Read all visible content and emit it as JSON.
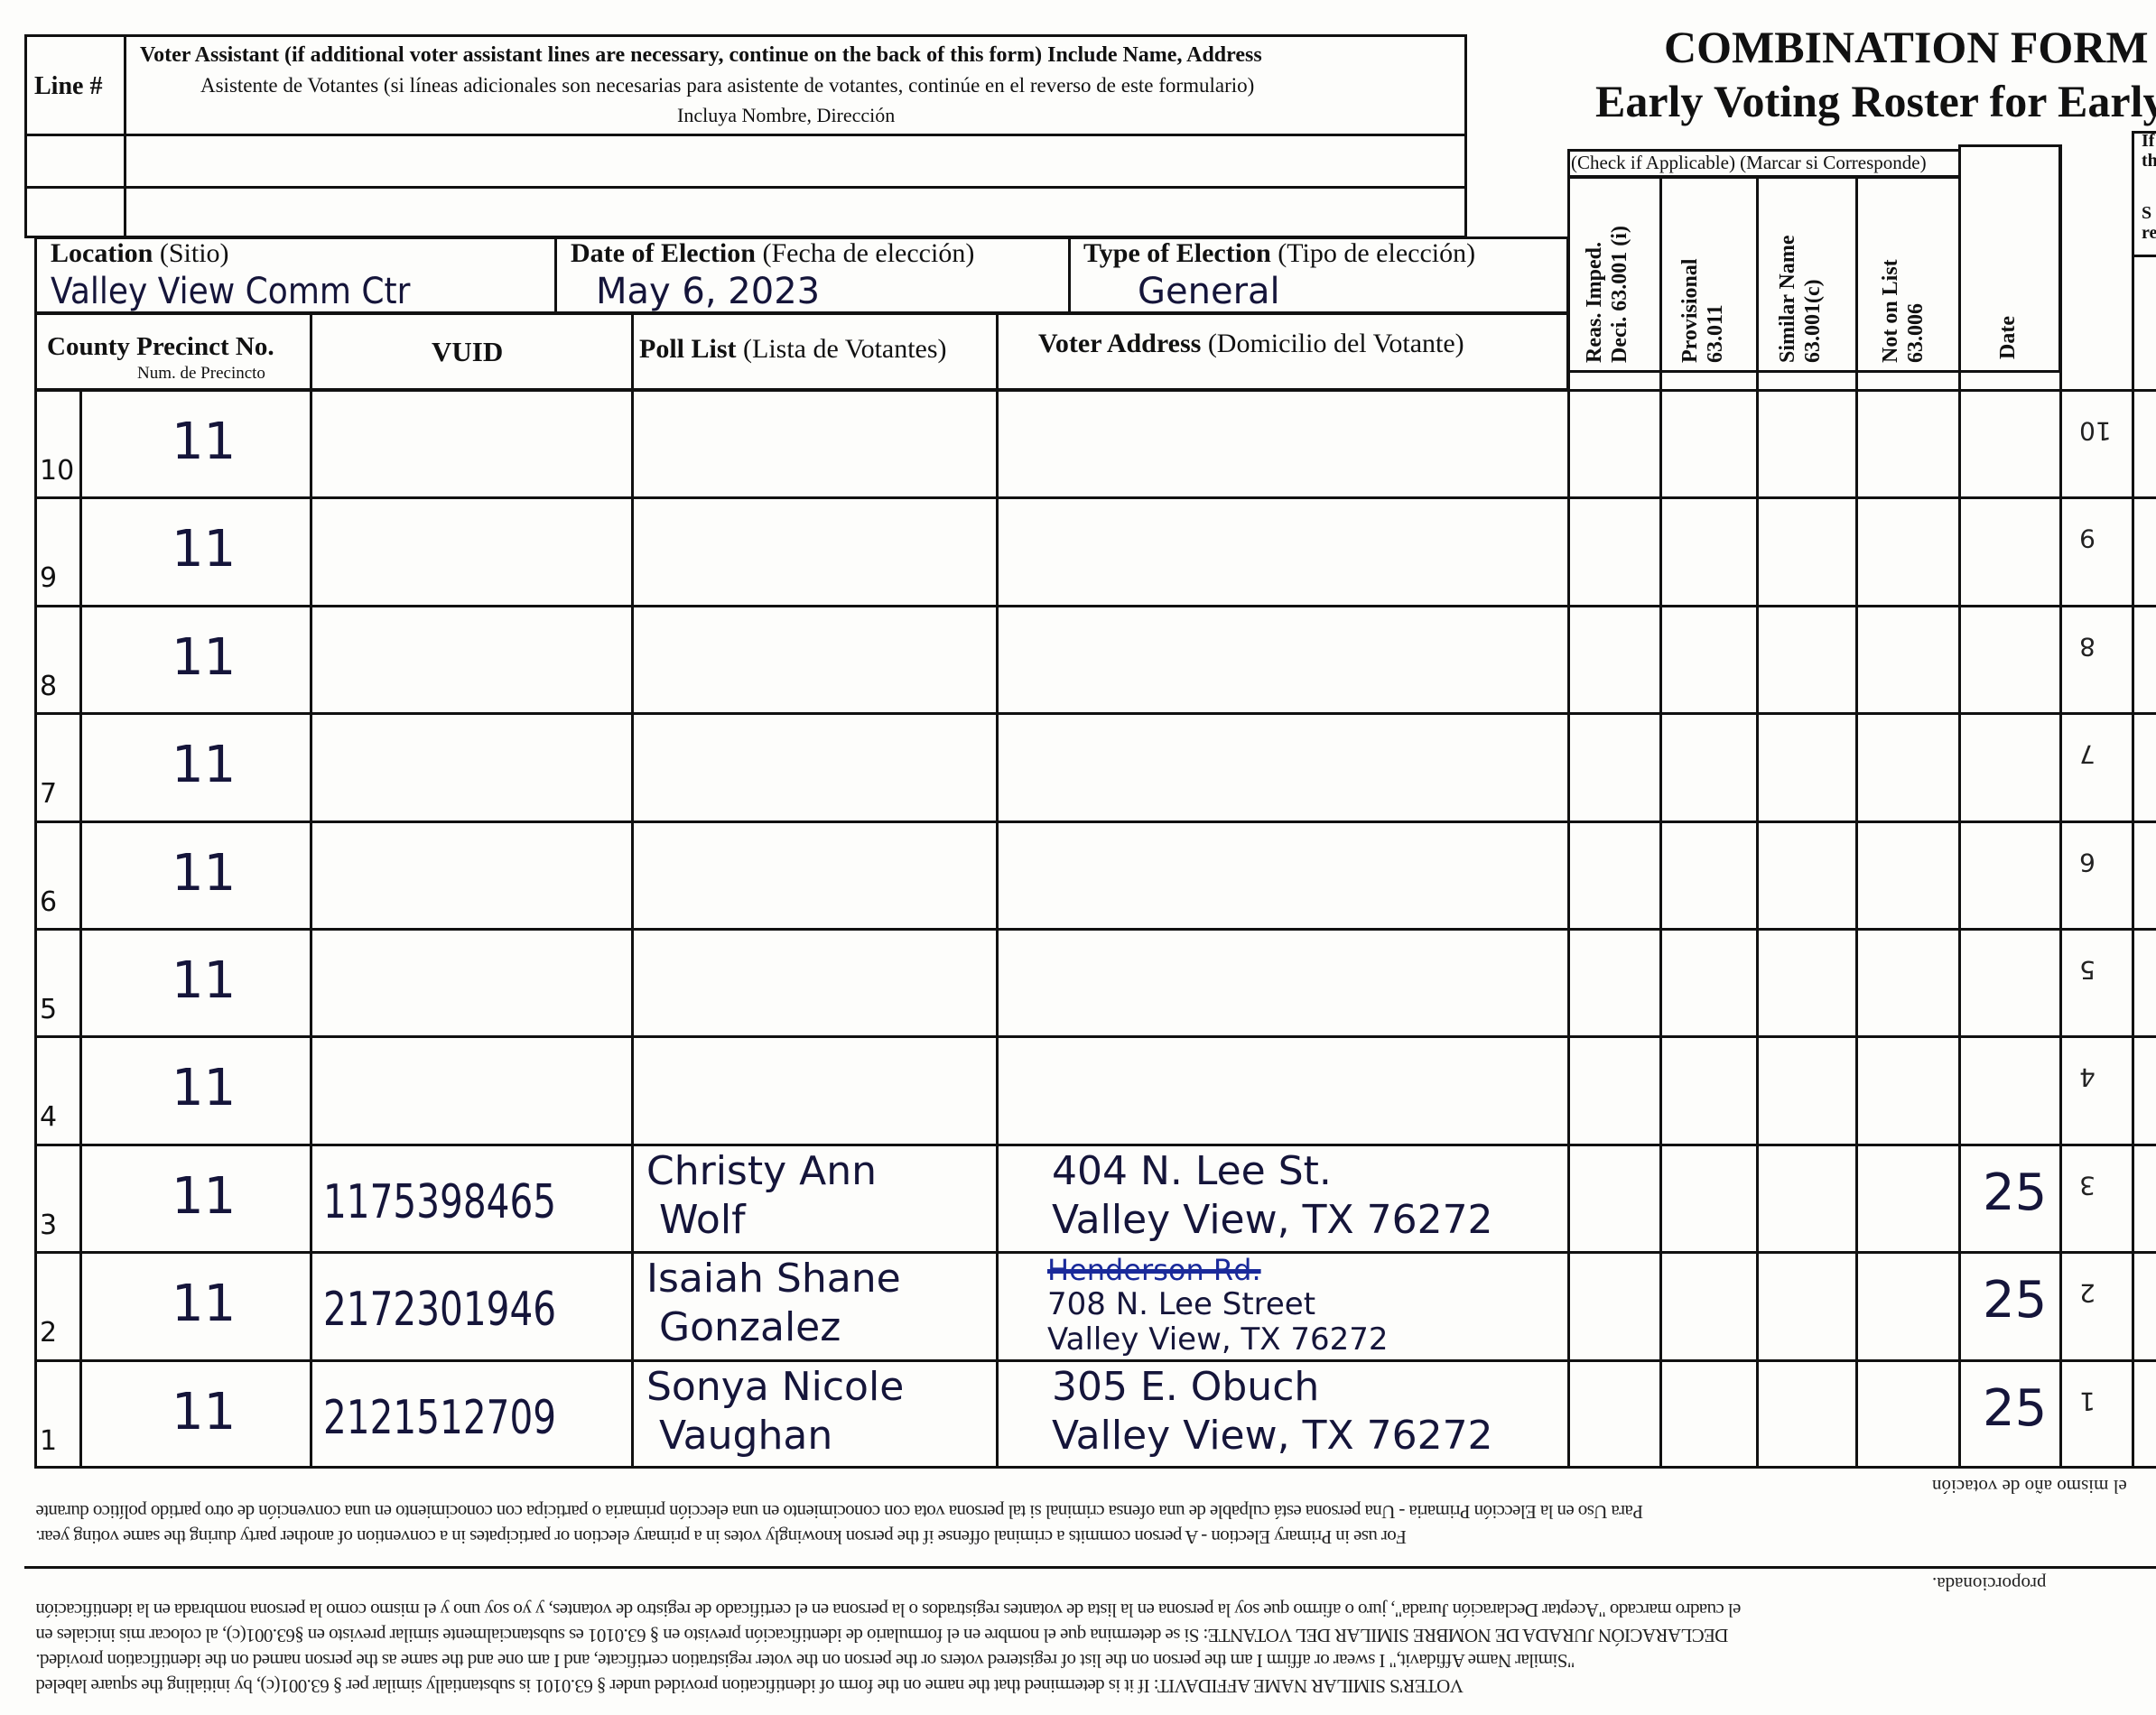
{
  "title": {
    "line1": "COMBINATION FORM a",
    "line2": "Early Voting Roster for Early"
  },
  "assistant": {
    "line_header": "Line #",
    "header_en": "Voter Assistant (if additional voter assistant lines are necessary, continue on the back of this form)  Include Name, Address",
    "header_es": "Asistente de Votantes (si líneas adicionales son necesarias para asistente de votantes, continúe en el reverso de este formulario)",
    "header_es2": "Incluya Nombre, Dirección"
  },
  "location": {
    "label": "Location",
    "label_es": "(Sitio)",
    "value": "Valley View Comm Ctr"
  },
  "election_date": {
    "label": "Date of Election",
    "label_es": "(Fecha de elección)",
    "value": "May 6, 2023"
  },
  "election_type": {
    "label": "Type of Election",
    "label_es": "(Tipo de elección)",
    "value": "General"
  },
  "columns": {
    "precinct": "County Precinct No.",
    "precinct_es": "Num. de Precincto",
    "vuid": "VUID",
    "poll_list": "Poll List",
    "poll_list_es": "(Lista de Votantes)",
    "address": "Voter Address",
    "address_es": "(Domicilio del Votante)",
    "check_header": "(Check if Applicable) (Marcar si Corresponde)",
    "reas_1": "Reas. Imped.",
    "reas_2": "Deci. 63.001 (i)",
    "prov_1": "Provisional",
    "prov_2": "63.011",
    "sim_1": "Similar Name",
    "sim_2": "63.001(c)",
    "notlist_1": "Not on List",
    "notlist_2": "63.006",
    "date": "Date",
    "right_box_1": "If",
    "right_box_2": "th",
    "right_box_3": "S",
    "right_box_4": "re"
  },
  "rows": [
    {
      "line": "10",
      "precinct": "11",
      "vuid": "",
      "name1": "",
      "name2": "",
      "addr_struck": "",
      "addr1": "",
      "addr2": "",
      "date": "",
      "line_flipped": "10"
    },
    {
      "line": "9",
      "precinct": "11",
      "vuid": "",
      "name1": "",
      "name2": "",
      "addr_struck": "",
      "addr1": "",
      "addr2": "",
      "date": "",
      "line_flipped": "9"
    },
    {
      "line": "8",
      "precinct": "11",
      "vuid": "",
      "name1": "",
      "name2": "",
      "addr_struck": "",
      "addr1": "",
      "addr2": "",
      "date": "",
      "line_flipped": "8"
    },
    {
      "line": "7",
      "precinct": "11",
      "vuid": "",
      "name1": "",
      "name2": "",
      "addr_struck": "",
      "addr1": "",
      "addr2": "",
      "date": "",
      "line_flipped": "7"
    },
    {
      "line": "6",
      "precinct": "11",
      "vuid": "",
      "name1": "",
      "name2": "",
      "addr_struck": "",
      "addr1": "",
      "addr2": "",
      "date": "",
      "line_flipped": "6"
    },
    {
      "line": "5",
      "precinct": "11",
      "vuid": "",
      "name1": "",
      "name2": "",
      "addr_struck": "",
      "addr1": "",
      "addr2": "",
      "date": "",
      "line_flipped": "5"
    },
    {
      "line": "4",
      "precinct": "11",
      "vuid": "",
      "name1": "",
      "name2": "",
      "addr_struck": "",
      "addr1": "",
      "addr2": "",
      "date": "",
      "line_flipped": "4"
    },
    {
      "line": "3",
      "precinct": "11",
      "vuid": "1175398465",
      "name1": "Christy Ann",
      "name2": "Wolf",
      "addr_struck": "",
      "addr1": "404 N. Lee St.",
      "addr2": "Valley View, TX 76272",
      "date": "25",
      "line_flipped": "3"
    },
    {
      "line": "2",
      "precinct": "11",
      "vuid": "2172301946",
      "name1": "Isaiah Shane",
      "name2": "Gonzalez",
      "addr_struck": "Henderson Rd.",
      "addr1": "708 N. Lee Street",
      "addr2": "Valley View, TX 76272",
      "date": "25",
      "line_flipped": "2"
    },
    {
      "line": "1",
      "precinct": "11",
      "vuid": "2121512709",
      "name1": "Sonya Nicole",
      "name2": "Vaughan",
      "addr_struck": "",
      "addr1": "305 E. Obuch",
      "addr2": "Valley View, TX 76272",
      "date": "25",
      "line_flipped": "1"
    }
  ],
  "footer_flipped": {
    "primary_es_tail": "el mismo año de votación",
    "primary_es": "Para Uso en la Elección Primaria - Una persona está culpable de una ofensa criminal si tal persona vota con conocimiento en una elección primaria o participa con conocimiento en una convención de otro partido político durante",
    "primary_en": "For use in Primary Election - A person commits a criminal offense if the person knowingly votes in a primary election or participates in a convention of another party during the same voting year.",
    "affidavit_es_tail": "proporcionada.",
    "affidavit_es_2": "el cuadro marcado \"Aceptar Declaración Jurada\", juro o afirmo que soy la persona en la lista de votantes registrados o la persona en el certificado de registro de votantes, y yo soy uno y el mismo como la persona nombrada en la identificación",
    "affidavit_es_1": "DECLARACIÓN JURADA DE NOMBRE SIMILAR DEL VOTANTE: Si se determina que el nombre en el formulario de identificación previsto en § 63.0101 es substancialmente similar previsto en §63.001(c), al colocar mis iniciales en",
    "affidavit_en_2": "\"Similar Name Affidavit,\" I swear or affirm I am the person on the list of registered voters or the person on the voter registration certificate, and I am one and the same as the person named on the identification provided.",
    "affidavit_en_1": "VOTER'S SIMILAR NAME AFFIDAVIT: If it is determined that the name on the form of identification provided under § 63.0101 is substantially similar per § 63.001(c), by initialing the square labeled"
  }
}
